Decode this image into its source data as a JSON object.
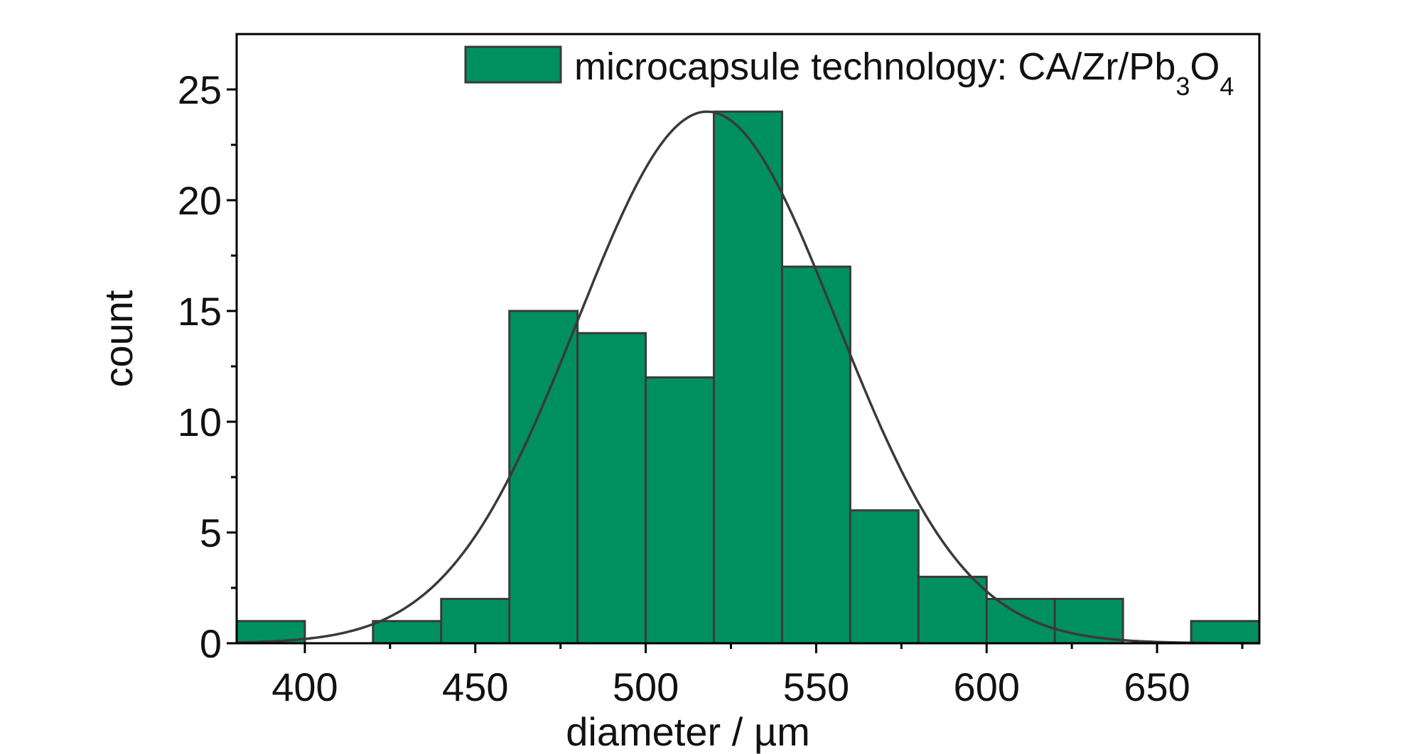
{
  "chart_data": {
    "type": "bar",
    "subtype": "histogram",
    "xlabel": "diameter / µm",
    "ylabel": "count",
    "xlim": [
      380,
      680
    ],
    "ylim": [
      0,
      27.5
    ],
    "x_ticks": [
      400,
      450,
      500,
      550,
      600,
      650
    ],
    "x_minor_ticks": [
      425,
      475,
      525,
      575,
      625,
      675
    ],
    "y_ticks": [
      0,
      5,
      10,
      15,
      20,
      25
    ],
    "y_minor_ticks": [
      2.5,
      7.5,
      12.5,
      17.5,
      22.5
    ],
    "bins": [
      {
        "x0": 380,
        "x1": 400,
        "count": 1
      },
      {
        "x0": 400,
        "x1": 420,
        "count": 0
      },
      {
        "x0": 420,
        "x1": 440,
        "count": 1
      },
      {
        "x0": 440,
        "x1": 460,
        "count": 2
      },
      {
        "x0": 460,
        "x1": 480,
        "count": 15
      },
      {
        "x0": 480,
        "x1": 500,
        "count": 14
      },
      {
        "x0": 500,
        "x1": 520,
        "count": 12
      },
      {
        "x0": 520,
        "x1": 540,
        "count": 24
      },
      {
        "x0": 540,
        "x1": 560,
        "count": 17
      },
      {
        "x0": 560,
        "x1": 580,
        "count": 6
      },
      {
        "x0": 580,
        "x1": 600,
        "count": 3
      },
      {
        "x0": 600,
        "x1": 620,
        "count": 2
      },
      {
        "x0": 620,
        "x1": 640,
        "count": 2
      },
      {
        "x0": 640,
        "x1": 660,
        "count": 0
      },
      {
        "x0": 660,
        "x1": 680,
        "count": 1
      }
    ],
    "fit_curve": {
      "type": "normal",
      "mean": 518,
      "sd": 38,
      "peak": 24
    },
    "legend": {
      "position": "top-right",
      "label_main": "microcapsule technology: CA/Zr/Pb",
      "label_sub1": "3",
      "label_mid": "O",
      "label_sub2": "4"
    },
    "colors": {
      "bar_fill": "#009060",
      "bar_edge": "#3a3a3a",
      "curve": "#3a3a3a",
      "axis": "#000000"
    },
    "grid": false
  }
}
